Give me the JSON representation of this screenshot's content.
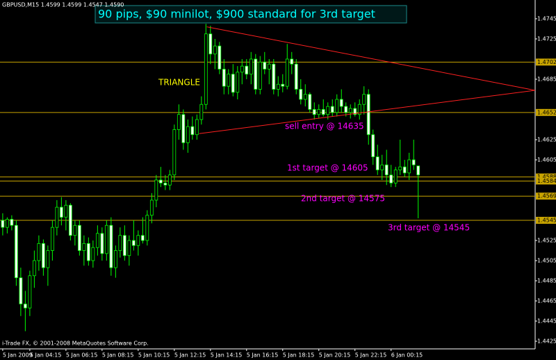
{
  "chart_data": {
    "type": "candlestick",
    "header": "GBPUSD,M15  1.4599 1.4599 1.4547 1.4590",
    "title": "90 pips, $90 minilot, $900 standard for 3rd target",
    "annotations": [
      "TRIANGLE",
      "sell entry @ 14635",
      "1st target @ 14605",
      "2nd target @ 14575",
      "3rd target @ 14545"
    ],
    "footer": "i-Trade FX, © 2001-2008 MetaQuotes Software Corp.",
    "categories": [
      "5 Jan 2009",
      null,
      null,
      null,
      null,
      null,
      "5 Jan 04:15",
      null,
      null,
      null,
      null,
      null,
      null,
      null,
      "5 Jan 06:15",
      null,
      null,
      null,
      null,
      null,
      null,
      null,
      "5 Jan 08:15",
      null,
      null,
      null,
      null,
      null,
      null,
      null,
      "5 Jan 10:15",
      null,
      null,
      null,
      null,
      null,
      null,
      null,
      "5 Jan 12:15",
      null,
      null,
      null,
      null,
      null,
      null,
      null,
      "5 Jan 14:15",
      null,
      null,
      null,
      null,
      null,
      null,
      null,
      "5 Jan 16:15",
      null,
      null,
      null,
      null,
      null,
      null,
      null,
      "5 Jan 18:15",
      null,
      null,
      null,
      null,
      null,
      null,
      null,
      "5 Jan 20:15",
      null,
      null,
      null,
      null,
      null,
      null,
      null,
      "5 Jan 22:15",
      null,
      null,
      null,
      null,
      null,
      null,
      null,
      "6 Jan 00:15",
      null,
      null,
      null,
      null,
      null,
      null
    ],
    "open": [
      1.4545,
      1.4538,
      1.4546,
      1.454,
      1.4488,
      1.4462,
      1.4458,
      1.449,
      1.4505,
      1.4522,
      1.4498,
      1.4515,
      1.4538,
      1.4558,
      1.4548,
      1.456,
      1.453,
      1.454,
      1.4515,
      1.4522,
      1.4505,
      1.4518,
      1.4532,
      1.4512,
      1.454,
      1.4498,
      1.4515,
      1.453,
      1.451,
      1.4525,
      1.452,
      1.453,
      1.4525,
      1.455,
      1.4565,
      1.4585,
      1.4582,
      1.458,
      1.459,
      1.4635,
      1.465,
      1.4622,
      1.4638,
      1.463,
      1.4645,
      1.466,
      1.473,
      1.471,
      1.4718,
      1.4695,
      1.4678,
      1.469,
      1.4672,
      1.4692,
      1.4698,
      1.469,
      1.4705,
      1.4675,
      1.4702,
      1.4695,
      1.47,
      1.4675,
      1.468,
      1.4678,
      1.4705,
      1.47,
      1.4675,
      1.4665,
      1.467,
      1.4655,
      1.465,
      1.4655,
      1.465,
      1.4658,
      1.4652,
      1.4665,
      1.4658,
      1.4652,
      1.4656,
      1.465,
      1.466,
      1.467,
      1.463,
      1.4608,
      1.4595,
      1.46,
      1.459,
      1.4582,
      1.4595,
      1.4598,
      1.4592,
      1.4605,
      1.4599
    ],
    "high": [
      1.4552,
      1.4548,
      1.455,
      1.4545,
      1.4498,
      1.4475,
      1.4495,
      1.4515,
      1.453,
      1.4526,
      1.452,
      1.4545,
      1.4565,
      1.4568,
      1.4565,
      1.4562,
      1.4545,
      1.4545,
      1.453,
      1.4528,
      1.4525,
      1.454,
      1.4538,
      1.4545,
      1.4548,
      1.452,
      1.4538,
      1.454,
      1.453,
      1.4545,
      1.4535,
      1.4548,
      1.4555,
      1.4572,
      1.459,
      1.4598,
      1.459,
      1.4595,
      1.464,
      1.466,
      1.4655,
      1.4645,
      1.4648,
      1.465,
      1.4668,
      1.474,
      1.4738,
      1.4725,
      1.4722,
      1.4705,
      1.4695,
      1.47,
      1.4698,
      1.4705,
      1.4705,
      1.4712,
      1.471,
      1.4708,
      1.4712,
      1.4705,
      1.4705,
      1.4688,
      1.469,
      1.472,
      1.4712,
      1.4705,
      1.4685,
      1.468,
      1.4672,
      1.4662,
      1.466,
      1.4665,
      1.4662,
      1.4665,
      1.467,
      1.4675,
      1.4662,
      1.466,
      1.4662,
      1.4665,
      1.4678,
      1.4675,
      1.4635,
      1.462,
      1.461,
      1.4615,
      1.46,
      1.4598,
      1.4625,
      1.4605,
      1.4612,
      1.4625,
      1.4599
    ],
    "low": [
      1.453,
      1.4532,
      1.4535,
      1.448,
      1.445,
      1.4435,
      1.445,
      1.4478,
      1.4495,
      1.449,
      1.448,
      1.4505,
      1.453,
      1.454,
      1.4535,
      1.4525,
      1.452,
      1.451,
      1.45,
      1.45,
      1.4498,
      1.451,
      1.4505,
      1.4505,
      1.449,
      1.4488,
      1.4508,
      1.4505,
      1.45,
      1.4515,
      1.451,
      1.4522,
      1.452,
      1.4542,
      1.4558,
      1.4578,
      1.4575,
      1.4575,
      1.4585,
      1.4625,
      1.4615,
      1.4612,
      1.4625,
      1.4625,
      1.464,
      1.4655,
      1.47,
      1.4695,
      1.469,
      1.467,
      1.467,
      1.4668,
      1.4665,
      1.468,
      1.4685,
      1.468,
      1.467,
      1.467,
      1.469,
      1.468,
      1.467,
      1.4668,
      1.4672,
      1.4675,
      1.469,
      1.467,
      1.466,
      1.4658,
      1.4652,
      1.4645,
      1.4646,
      1.4648,
      1.4645,
      1.4648,
      1.4648,
      1.4652,
      1.4648,
      1.4646,
      1.4648,
      1.4645,
      1.465,
      1.462,
      1.46,
      1.459,
      1.4585,
      1.458,
      1.4578,
      1.4578,
      1.459,
      1.4588,
      1.4585,
      1.4595,
      1.4547
    ],
    "close": [
      1.4538,
      1.4546,
      1.454,
      1.4488,
      1.4462,
      1.4458,
      1.449,
      1.4505,
      1.4522,
      1.4498,
      1.4515,
      1.4538,
      1.4558,
      1.4548,
      1.456,
      1.453,
      1.454,
      1.4515,
      1.4522,
      1.4505,
      1.4518,
      1.4532,
      1.4512,
      1.454,
      1.4498,
      1.4515,
      1.453,
      1.451,
      1.4525,
      1.452,
      1.453,
      1.4525,
      1.455,
      1.4565,
      1.4585,
      1.4582,
      1.458,
      1.459,
      1.4635,
      1.465,
      1.4622,
      1.4638,
      1.463,
      1.4645,
      1.466,
      1.473,
      1.471,
      1.4718,
      1.4695,
      1.4678,
      1.469,
      1.4672,
      1.4692,
      1.4698,
      1.469,
      1.4705,
      1.4675,
      1.4702,
      1.4695,
      1.47,
      1.4675,
      1.468,
      1.4678,
      1.4705,
      1.47,
      1.4675,
      1.4665,
      1.467,
      1.4655,
      1.465,
      1.4655,
      1.465,
      1.4658,
      1.4652,
      1.4665,
      1.4658,
      1.4652,
      1.4656,
      1.465,
      1.466,
      1.467,
      1.463,
      1.4608,
      1.4595,
      1.46,
      1.459,
      1.4582,
      1.4595,
      1.4598,
      1.4592,
      1.4605,
      1.46,
      1.459
    ],
    "up_color": "#000000",
    "down_color": "#f0fff0",
    "wick_color": "#00ff00",
    "xlim": [
      -0.6,
      117.9
    ],
    "ylim": [
      1.44188,
      1.47636
    ],
    "yticks": [
      1.4745,
      1.4725,
      1.4685,
      1.4625,
      1.4605,
      1.4525,
      1.4505,
      1.4485,
      1.4465,
      1.4445,
      1.4425
    ],
    "levels": [
      1.4702,
      1.4652,
      1.4588,
      1.4584,
      1.4569,
      1.4545
    ],
    "level_color": "#c8a400",
    "trendlines": [
      {
        "x": [
          45.2,
          117.9
        ],
        "y": [
          1.4737,
          1.4674
        ]
      },
      {
        "x": [
          43.5,
          117.9
        ],
        "y": [
          1.4631,
          1.4674
        ]
      }
    ],
    "trendline_color": "#ff2020",
    "grid": false
  }
}
